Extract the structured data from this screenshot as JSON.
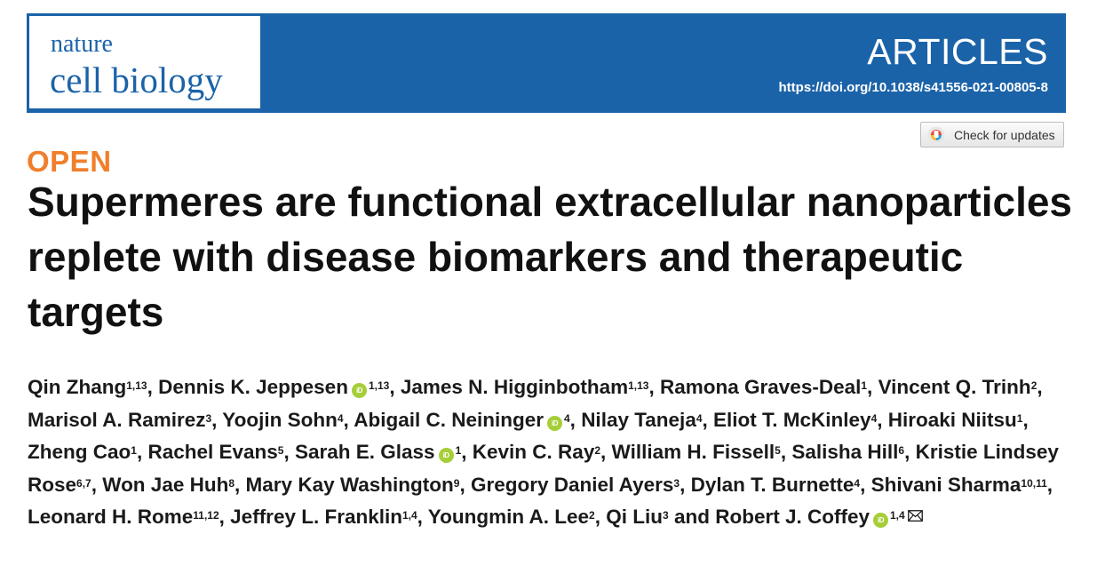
{
  "header": {
    "journal_top": "nature",
    "journal_bottom": "cell biology",
    "section": "ARTICLES",
    "doi": "https://doi.org/10.1038/s41556-021-00805-8"
  },
  "check_updates": {
    "label": "Check for updates"
  },
  "access_label": "OPEN",
  "title": "Supermeres are functional extracellular nanoparticles replete with disease biomarkers and therapeutic targets",
  "orcid_text": "iD",
  "authors": [
    {
      "name": "Qin Zhang",
      "aff": "1,13",
      "orcid": false
    },
    {
      "name": "Dennis K. Jeppesen",
      "aff": "1,13",
      "orcid": true
    },
    {
      "name": "James N. Higginbotham",
      "aff": "1,13",
      "orcid": false
    },
    {
      "name": "Ramona Graves-Deal",
      "aff": "1",
      "orcid": false
    },
    {
      "name": "Vincent Q. Trinh",
      "aff": "2",
      "orcid": false
    },
    {
      "name": "Marisol A. Ramirez",
      "aff": "3",
      "orcid": false
    },
    {
      "name": "Yoojin Sohn",
      "aff": "4",
      "orcid": false
    },
    {
      "name": "Abigail C. Neininger",
      "aff": "4",
      "orcid": true
    },
    {
      "name": "Nilay Taneja",
      "aff": "4",
      "orcid": false
    },
    {
      "name": "Eliot T. McKinley",
      "aff": "4",
      "orcid": false
    },
    {
      "name": "Hiroaki Niitsu",
      "aff": "1",
      "orcid": false
    },
    {
      "name": "Zheng Cao",
      "aff": "1",
      "orcid": false
    },
    {
      "name": "Rachel Evans",
      "aff": "5",
      "orcid": false
    },
    {
      "name": "Sarah E. Glass",
      "aff": "1",
      "orcid": true
    },
    {
      "name": "Kevin C. Ray",
      "aff": "2",
      "orcid": false
    },
    {
      "name": "William H. Fissell",
      "aff": "5",
      "orcid": false
    },
    {
      "name": "Salisha Hill",
      "aff": "6",
      "orcid": false
    },
    {
      "name": "Kristie Lindsey Rose",
      "aff": "6,7",
      "orcid": false
    },
    {
      "name": "Won Jae Huh",
      "aff": "8",
      "orcid": false
    },
    {
      "name": "Mary Kay Washington",
      "aff": "9",
      "orcid": false
    },
    {
      "name": "Gregory Daniel Ayers",
      "aff": "3",
      "orcid": false
    },
    {
      "name": "Dylan T. Burnette",
      "aff": "4",
      "orcid": false
    },
    {
      "name": "Shivani Sharma",
      "aff": "10,11",
      "orcid": false
    },
    {
      "name": "Leonard H. Rome",
      "aff": "11,12",
      "orcid": false
    },
    {
      "name": "Jeffrey L. Franklin",
      "aff": "1,4",
      "orcid": false
    },
    {
      "name": "Youngmin A. Lee",
      "aff": "2",
      "orcid": false
    },
    {
      "name": "Qi Liu",
      "aff": "3",
      "orcid": false
    },
    {
      "name": "Robert J. Coffey",
      "aff": "1,4",
      "orcid": true,
      "corresponding": true
    }
  ],
  "author_separator": ", ",
  "author_final_separator": " and ",
  "colors": {
    "header_blue": "#1b63a8",
    "open_orange": "#f07f2c",
    "orcid_green": "#a6ce39"
  }
}
